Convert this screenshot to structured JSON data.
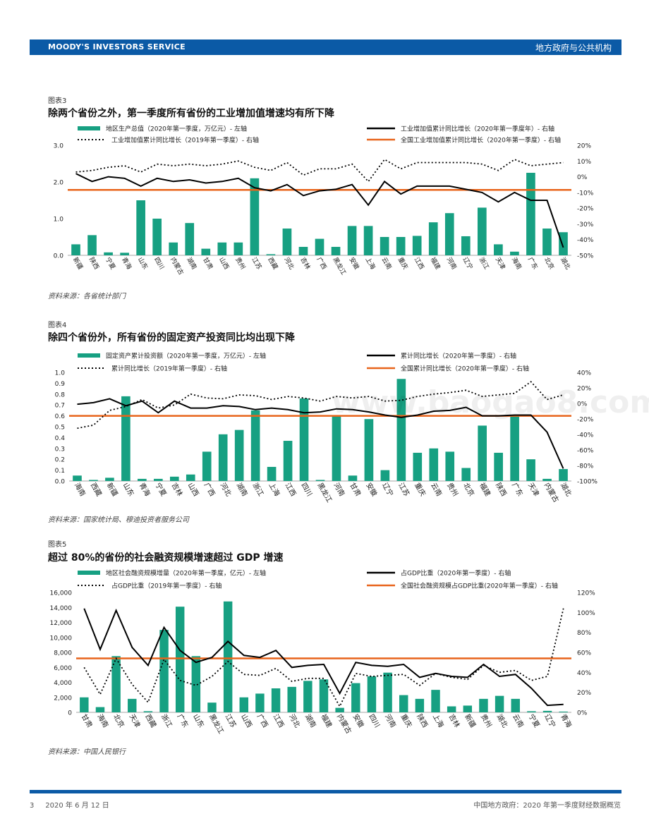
{
  "header": {
    "brand": "MOODY'S INVESTORS SERVICE",
    "section": "地方政府与公共机构"
  },
  "watermark": "www.baogao8.com",
  "footer": {
    "page": "3",
    "date": "2020 年 6 月 12 日",
    "title": "中国地方政府：2020 年第一季度财经数据概览"
  },
  "colors": {
    "bar": "#17a082",
    "line": "#000000",
    "ref": "#e8641b",
    "brand": "#0b5aa6"
  },
  "figures": [
    {
      "label": "图表3",
      "title": "除两个省份之外，第一季度所有省份的工业增加值增速均有所下降",
      "source": "资料来源：各省统计部门",
      "legend": {
        "bar": "地区生产总值（2020年第一季度，万亿元）- 左轴",
        "line": "工业增加值累计同比增长（2020年第一季度年）- 右轴",
        "dotted": "工业增加值累计同比增长（2019年第一季度）- 右轴",
        "ref": "全国工业增加值累计同比增长（2020年第一季度）- 右轴"
      }
    },
    {
      "label": "图表4",
      "title": "除四个省份外，所有省份的固定资产投资同比均出现下降",
      "source": "资料来源：国家统计局、穆迪投资者服务公司",
      "legend": {
        "bar": "固定资产累计投资额（2020年第一季度，万亿元）- 左轴",
        "line": "累计同比增长（2020年第一季度）- 右轴",
        "dotted": "累计同比增长（2019年第一季度）- 右轴",
        "ref": "全国累计同比增长（2020年第一季度）- 右轴"
      }
    },
    {
      "label": "图表5",
      "title": "超过 80%的省份的社会融资规模增速超过 GDP 增速",
      "source": "资料来源：中国人民银行",
      "legend": {
        "bar": "地区社会融资规模增量（2020年第一季度，亿元）- 左轴",
        "line": "占GDP比重（2020年第一季度）- 右轴",
        "dotted": "占GDP比重（2019年第一季度）- 右轴",
        "ref": "全国社会融资规模占GDP比重(2020年第一季度）- 右轴"
      }
    }
  ],
  "chart_data": [
    {
      "type": "bar",
      "categories": [
        "新疆",
        "陕西",
        "宁夏",
        "青海",
        "山东",
        "四川",
        "内蒙古",
        "湖南",
        "甘肃",
        "山西",
        "贵州",
        "江苏",
        "西藏",
        "河北",
        "吉林",
        "广西",
        "黑龙江",
        "安徽",
        "上海",
        "云南",
        "重庆",
        "江西",
        "福建",
        "河南",
        "辽宁",
        "浙江",
        "天津",
        "海南",
        "广东",
        "北京",
        "湖北"
      ],
      "series": [
        {
          "name": "地区生产总值（2020年第一季度，万亿元）- 左轴",
          "axis": "left",
          "kind": "bar",
          "values": [
            0.3,
            0.55,
            0.08,
            0.07,
            1.5,
            1.0,
            0.35,
            0.88,
            0.18,
            0.35,
            0.35,
            2.1,
            0.03,
            0.73,
            0.23,
            0.45,
            0.23,
            0.8,
            0.8,
            0.5,
            0.5,
            0.53,
            0.9,
            1.15,
            0.52,
            1.3,
            0.3,
            0.1,
            2.25,
            0.73,
            0.63
          ]
        },
        {
          "name": "工业增加值累计同比增长（2020年第一季度年）- 右轴",
          "axis": "right",
          "kind": "line",
          "values": [
            2,
            -3,
            0,
            -1,
            -6,
            -1,
            -3,
            -2,
            -4,
            -3,
            -1,
            -7,
            -9,
            -5,
            -12,
            -9,
            -8,
            -5,
            -18,
            -3,
            -11,
            -6,
            -6,
            -6,
            -8,
            -10,
            -16,
            -10,
            -15,
            -15,
            -45
          ]
        },
        {
          "name": "工业增加值累计同比增长（2019年第一季度）- 右轴",
          "axis": "right",
          "kind": "dotted",
          "values": [
            3,
            4,
            6,
            7,
            3,
            8,
            7,
            8,
            7,
            8,
            10,
            6,
            4,
            9,
            1,
            5,
            5,
            8,
            -3,
            11,
            5,
            9,
            9,
            9,
            9,
            8,
            4,
            11,
            7,
            8,
            9
          ]
        },
        {
          "name": "全国工业增加值累计同比增长（2020年第一季度）- 右轴",
          "axis": "right",
          "kind": "ref",
          "value": -8.4
        }
      ],
      "yleft": {
        "min": 0,
        "max": 3,
        "ticks": [
          "0.0",
          "1.0",
          "2.0",
          "3.0"
        ]
      },
      "yright": {
        "min": -50,
        "max": 20,
        "ticks": [
          "-50%",
          "-40%",
          "-30%",
          "-20%",
          "-10%",
          "0%",
          "10%",
          "20%"
        ]
      }
    },
    {
      "type": "bar",
      "categories": [
        "海南",
        "西藏",
        "新疆",
        "山东",
        "青海",
        "宁夏",
        "吉林",
        "山西",
        "广西",
        "河北",
        "湖南",
        "浙江",
        "上海",
        "江西",
        "四川",
        "黑龙江",
        "河南",
        "甘肃",
        "安徽",
        "辽宁",
        "江苏",
        "重庆",
        "云南",
        "贵州",
        "北京",
        "福建",
        "陕西",
        "广东",
        "天津",
        "内蒙古",
        "湖北"
      ],
      "series": [
        {
          "name": "固定资产累计投资额（2020年第一季度，万亿元）- 左轴",
          "axis": "left",
          "kind": "bar",
          "values": [
            0.05,
            0.01,
            0.03,
            0.78,
            0.02,
            0.02,
            0.04,
            0.06,
            0.27,
            0.43,
            0.47,
            0.65,
            0.13,
            0.37,
            0.76,
            0.01,
            0.6,
            0.05,
            0.57,
            0.1,
            0.94,
            0.26,
            0.3,
            0.27,
            0.12,
            0.51,
            0.26,
            0.6,
            0.2,
            0.02,
            0.11
          ]
        },
        {
          "name": "累计同比增长（2020年第一季度）- 右轴",
          "axis": "right",
          "kind": "line",
          "values": [
            -1,
            1,
            6,
            -3,
            3,
            -12,
            3,
            -6,
            -6,
            -3,
            -4,
            -8,
            -6,
            -8,
            -12,
            -11,
            -7,
            -8,
            -11,
            -15,
            -18,
            -15,
            -10,
            -9,
            -5,
            -16,
            -16,
            -15,
            -15,
            -37,
            -84
          ]
        },
        {
          "name": "累计同比增长（2019年第一季度）- 右轴",
          "axis": "right",
          "kind": "dotted",
          "values": [
            -32,
            -28,
            -9,
            -4,
            5,
            -6,
            -2,
            12,
            7,
            6,
            11,
            10,
            5,
            9,
            7,
            3,
            9,
            7,
            9,
            3,
            4,
            9,
            12,
            14,
            17,
            9,
            11,
            13,
            28,
            5,
            11
          ]
        },
        {
          "name": "全国累计同比增长（2020年第一季度）- 右轴",
          "axis": "right",
          "kind": "ref",
          "value": -16
        }
      ],
      "yleft": {
        "min": 0,
        "max": 1.0,
        "ticks": [
          "0.0",
          "0.1",
          "0.2",
          "0.3",
          "0.4",
          "0.5",
          "0.6",
          "0.7",
          "0.8",
          "0.9",
          "1.0"
        ]
      },
      "yright": {
        "min": -100,
        "max": 40,
        "ticks": [
          "-100%",
          "-80%",
          "-60%",
          "-40%",
          "-20%",
          "0%",
          "20%",
          "40%"
        ]
      }
    },
    {
      "type": "bar",
      "categories": [
        "甘肃",
        "海南",
        "北京",
        "天津",
        "西藏",
        "浙江",
        "广东",
        "山东",
        "黑龙江",
        "江苏",
        "山西",
        "广西",
        "江西",
        "河北",
        "湖南",
        "福建",
        "内蒙古",
        "安徽",
        "四川",
        "河南",
        "重庆",
        "陕西",
        "上海",
        "吉林",
        "新疆",
        "贵州",
        "湖北",
        "云南",
        "宁夏",
        "辽宁",
        "青海"
      ],
      "series": [
        {
          "name": "地区社会融资规模增量（2020年第一季度，亿元）- 左轴",
          "axis": "left",
          "kind": "bar",
          "values": [
            2000,
            700,
            7500,
            1800,
            150,
            11000,
            14100,
            7500,
            1300,
            14800,
            2000,
            2500,
            3200,
            3400,
            4200,
            4400,
            600,
            3900,
            4800,
            5300,
            2300,
            1800,
            3000,
            800,
            900,
            1800,
            2200,
            1800,
            150,
            200,
            100
          ]
        },
        {
          "name": "占GDP比重（2020年第一季度）- 右轴",
          "axis": "right",
          "kind": "line",
          "values": [
            104,
            63,
            102,
            65,
            47,
            85,
            62,
            50,
            55,
            71,
            57,
            55,
            62,
            45,
            47,
            48,
            19,
            50,
            47,
            46,
            48,
            35,
            39,
            36,
            35,
            48,
            36,
            38,
            24,
            7,
            8
          ]
        },
        {
          "name": "占GDP比重（2019年第一季度）- 右轴",
          "axis": "right",
          "kind": "dotted",
          "values": [
            45,
            18,
            54,
            28,
            10,
            53,
            32,
            27,
            36,
            51,
            38,
            37,
            44,
            31,
            34,
            34,
            6,
            39,
            36,
            37,
            38,
            27,
            39,
            35,
            33,
            47,
            40,
            42,
            32,
            36,
            104
          ]
        },
        {
          "name": "全国社会融资规模占GDP比重(2020年第一季度）- 右轴",
          "axis": "right",
          "kind": "ref",
          "value": 54
        }
      ],
      "yleft": {
        "min": 0,
        "max": 16000,
        "ticks": [
          "0",
          "2,000",
          "4,000",
          "6,000",
          "8,000",
          "10,000",
          "12,000",
          "14,000",
          "16,000"
        ]
      },
      "yright": {
        "min": 0,
        "max": 120,
        "ticks": [
          "0%",
          "20%",
          "40%",
          "60%",
          "80%",
          "100%",
          "120%"
        ]
      }
    }
  ]
}
